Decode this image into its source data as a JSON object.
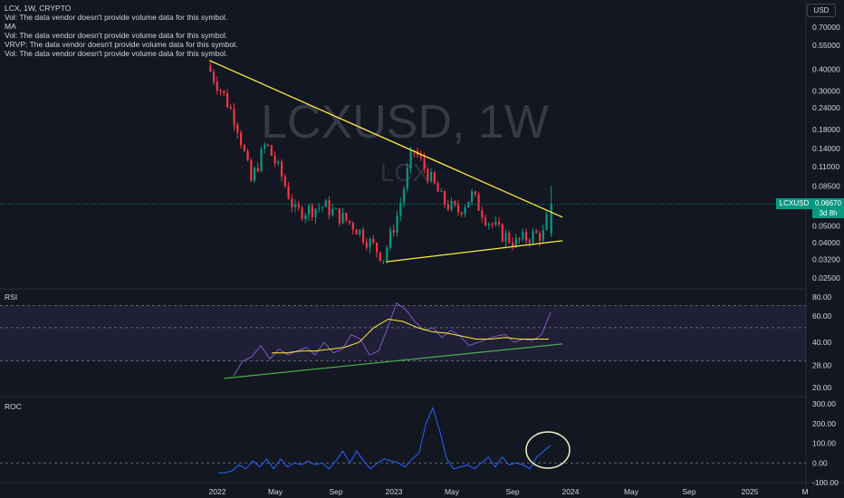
{
  "header": {
    "symbol_line": "LCX, 1W, CRYPTO",
    "legend_lines": [
      "Vol: The data vendor doesn't provide volume data for this symbol.",
      "MA",
      "Vol: The data vendor doesn't provide volume data for this symbol.",
      "VRVP: The data vendor doesn't provide volume data for this symbol.",
      "Vol: The data vendor doesn't provide volume data for this symbol."
    ],
    "currency_button": "USD"
  },
  "watermark": {
    "main": "LCXUSD, 1W",
    "sub": "LCX"
  },
  "price_tag": {
    "symbol": "LCXUSD",
    "price": "0.06670",
    "countdown": "3d 8h"
  },
  "colors": {
    "background": "#131722",
    "up": "#089981",
    "down": "#f23645",
    "trendline": "#ffeb3b",
    "rsi": "#7e57c2",
    "rsi_ma": "#ffeb3b",
    "rsi_trend": "#4caf50",
    "roc": "#2962ff",
    "band": "#7e57c2"
  },
  "panes": {
    "rsi_label": "RSI",
    "roc_label": "ROC"
  },
  "x_axis": {
    "ticks": [
      "2022",
      "May",
      "Sep",
      "2023",
      "May",
      "Sep",
      "2024",
      "May",
      "Sep",
      "2025",
      "M"
    ]
  },
  "chart_data": [
    {
      "type": "candlestick",
      "title": "LCXUSD, 1W",
      "scale": "log",
      "y_ticks": [
        "0.70000",
        "0.55000",
        "0.40000",
        "0.30000",
        "0.24000",
        "0.18000",
        "0.14000",
        "0.11000",
        "0.08500",
        "0.05000",
        "0.04000",
        "0.03200",
        "0.02500"
      ],
      "last_price": 0.0667,
      "trendlines": [
        {
          "name": "resistance",
          "from": [
            "2021-12",
            0.45
          ],
          "to": [
            "2023-12",
            0.056
          ]
        },
        {
          "name": "support",
          "from": [
            "2022-12",
            0.031
          ],
          "to": [
            "2023-12",
            0.041
          ]
        }
      ],
      "approx_path": [
        [
          "2021-12",
          0.42
        ],
        [
          "2022-01",
          0.3
        ],
        [
          "2022-02",
          0.2
        ],
        [
          "2022-03",
          0.09
        ],
        [
          "2022-04",
          0.15
        ],
        [
          "2022-05",
          0.1
        ],
        [
          "2022-06",
          0.06
        ],
        [
          "2022-08",
          0.065
        ],
        [
          "2022-10",
          0.05
        ],
        [
          "2022-12",
          0.033
        ],
        [
          "2023-01",
          0.06
        ],
        [
          "2023-02",
          0.14
        ],
        [
          "2023-03",
          0.1
        ],
        [
          "2023-04",
          0.07
        ],
        [
          "2023-05",
          0.06
        ],
        [
          "2023-06",
          0.075
        ],
        [
          "2023-07",
          0.055
        ],
        [
          "2023-08",
          0.045
        ],
        [
          "2023-09",
          0.04
        ],
        [
          "2023-10",
          0.044
        ],
        [
          "2023-11",
          0.045
        ],
        [
          "2023-11-20",
          0.067
        ]
      ]
    },
    {
      "type": "line",
      "title": "RSI",
      "y_ticks": [
        "80.00",
        "60.00",
        "40.00",
        "28.00",
        "20.00"
      ],
      "bands": [
        70,
        30
      ],
      "midline": 50,
      "approx_rsi": [
        24,
        30,
        32,
        38,
        31,
        36,
        33,
        35,
        37,
        33,
        40,
        34,
        36,
        45,
        42,
        33,
        35,
        50,
        73,
        66,
        55,
        48,
        50,
        43,
        48,
        44,
        38,
        40,
        42,
        44,
        45,
        40,
        42,
        41,
        45,
        63
      ],
      "approx_rsi_ma": [
        34,
        34,
        35,
        35,
        36,
        37,
        40,
        50,
        57,
        55,
        50,
        47,
        46,
        44,
        42,
        42,
        43,
        42,
        42,
        42
      ],
      "trendline": {
        "from": [
          "2022-01",
          23
        ],
        "to": [
          "2023-12",
          39
        ]
      }
    },
    {
      "type": "line",
      "title": "ROC",
      "y_ticks": [
        "300.00",
        "200.00",
        "100.00",
        "0.00",
        "-100.00"
      ],
      "zero_line": 0,
      "approx_roc": [
        -50,
        -50,
        -40,
        -10,
        -30,
        10,
        -20,
        20,
        -30,
        20,
        -20,
        0,
        -10,
        10,
        -10,
        0,
        -30,
        10,
        60,
        0,
        60,
        10,
        -30,
        0,
        20,
        10,
        0,
        -20,
        20,
        50,
        200,
        280,
        160,
        20,
        -30,
        -20,
        -10,
        -30,
        0,
        30,
        -20,
        30,
        -10,
        0,
        -10,
        -30,
        30,
        60,
        90
      ],
      "annotation": "circle highlighting recent ROC rise"
    }
  ]
}
